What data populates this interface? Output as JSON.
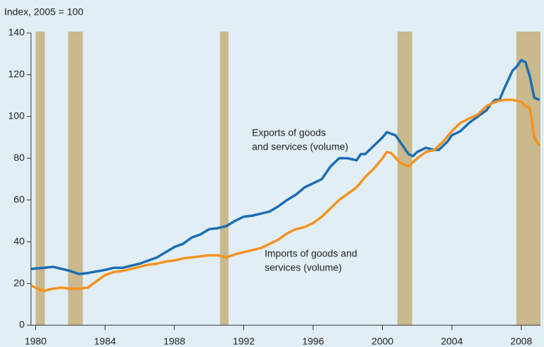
{
  "chart_data": {
    "type": "line",
    "y_axis_label": "Index, 2005 = 100",
    "xlim": [
      1979.73,
      2009.11
    ],
    "xticks": [
      1980,
      1984,
      1988,
      1992,
      1996,
      2000,
      2004,
      2008
    ],
    "ylim": [
      0,
      140
    ],
    "yticks": [
      0,
      20,
      40,
      60,
      80,
      100,
      120,
      140
    ],
    "shaded_periods": [
      [
        1980.0,
        1980.53
      ],
      [
        1981.87,
        1982.72
      ],
      [
        1990.63,
        1991.12
      ],
      [
        2000.86,
        2001.71
      ],
      [
        2007.72,
        2009.11
      ]
    ],
    "shaded_color": "#c9b98c",
    "annotations": [
      [
        "Exports of goods",
        "and services (volume)"
      ],
      [
        "Imports of goods and",
        "services (volume)"
      ]
    ],
    "series": [
      {
        "name": "Exports of goods and services (volume)",
        "color": "#1b6db3",
        "x": [
          1979.75,
          1980.5,
          1981,
          1981.5,
          1982,
          1982.5,
          1983,
          1984,
          1984.5,
          1985,
          1986,
          1986.5,
          1987,
          1987.5,
          1988,
          1988.5,
          1989,
          1989.5,
          1990,
          1990.5,
          1991,
          1991.5,
          1992,
          1992.5,
          1993,
          1993.5,
          1994,
          1994.5,
          1995,
          1995.5,
          1996,
          1996.5,
          1997,
          1997.5,
          1998,
          1998.5,
          1998.75,
          1999,
          1999.5,
          2000,
          2000.25,
          2000.75,
          2001,
          2001.5,
          2001.75,
          2002,
          2002.5,
          2003,
          2003.25,
          2003.75,
          2004,
          2004.5,
          2005,
          2005.5,
          2006,
          2006.25,
          2006.5,
          2006.75,
          2007,
          2007.5,
          2007.75,
          2008,
          2008.25,
          2008.5,
          2008.75,
          2009.05
        ],
        "values": [
          27,
          27.5,
          28,
          27,
          26,
          24.5,
          25,
          26.5,
          27.5,
          27.5,
          29.5,
          31,
          32.5,
          35,
          37.5,
          39,
          42,
          43.5,
          46,
          46.5,
          47.5,
          50,
          52,
          52.5,
          53.5,
          54.5,
          57,
          60,
          62.5,
          66,
          68,
          70,
          76,
          80,
          80,
          79,
          82,
          82,
          86,
          90,
          92.5,
          91,
          88,
          82,
          81,
          83,
          85,
          84,
          84,
          88,
          91,
          93,
          97,
          100,
          103,
          106,
          108,
          108,
          113,
          122,
          124,
          127,
          126,
          119,
          109,
          108
        ]
      },
      {
        "name": "Imports of goods and services (volume)",
        "color": "#f5921e",
        "x": [
          1979.75,
          1980.25,
          1980.5,
          1981,
          1981.5,
          1982,
          1982.5,
          1983,
          1983.5,
          1984,
          1984.5,
          1985,
          1985.5,
          1986,
          1986.5,
          1987,
          1987.5,
          1988,
          1988.5,
          1989,
          1989.5,
          1990,
          1990.5,
          1991,
          1991.5,
          1992,
          1992.5,
          1993,
          1993.5,
          1994,
          1994.5,
          1995,
          1995.5,
          1996,
          1996.5,
          1997,
          1997.5,
          1998,
          1998.5,
          1999,
          1999.5,
          2000,
          2000.25,
          2000.5,
          2001,
          2001.5,
          2002,
          2002.5,
          2003,
          2003.5,
          2004,
          2004.5,
          2005,
          2005.5,
          2006,
          2006.5,
          2007,
          2007.5,
          2008,
          2008.25,
          2008.5,
          2008.75,
          2009.05
        ],
        "values": [
          19,
          17,
          16.5,
          17.5,
          18,
          17.5,
          17.5,
          18,
          21,
          24,
          25.5,
          26,
          27,
          28,
          29,
          29.5,
          30.5,
          31,
          32,
          32.5,
          33,
          33.5,
          33.5,
          32.5,
          34,
          35,
          36,
          37,
          39,
          41,
          44,
          46,
          47,
          49,
          52,
          56,
          60,
          63,
          66,
          71,
          75,
          80,
          83,
          82.5,
          78,
          76,
          80,
          83,
          84,
          88,
          93,
          97,
          99,
          101,
          105,
          107,
          108,
          108,
          107,
          105,
          104,
          90,
          86
        ]
      }
    ]
  }
}
